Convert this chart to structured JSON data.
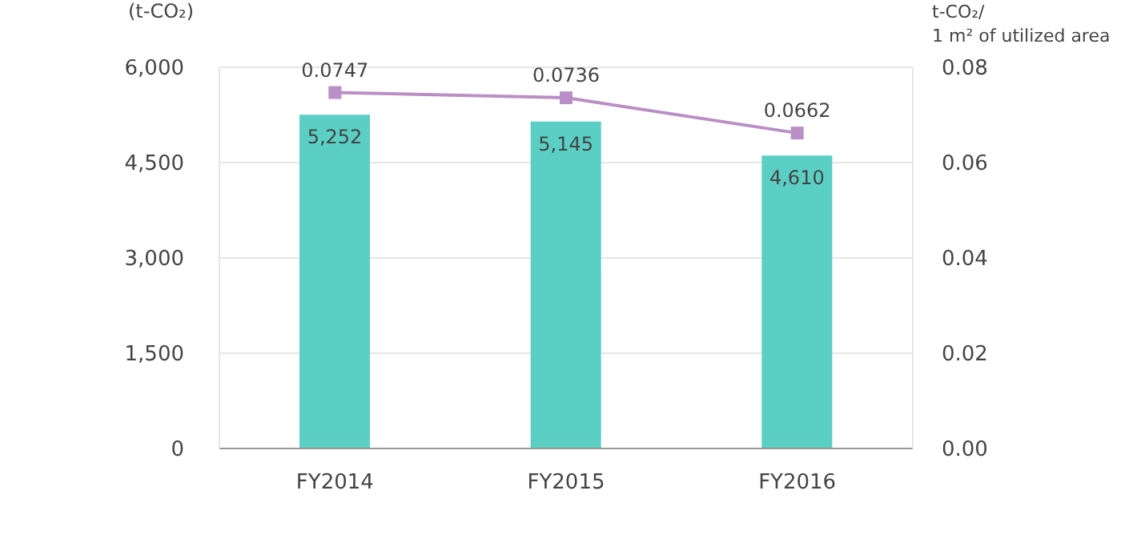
{
  "chart_data": {
    "type": "bar",
    "ylabel": "(t-CO₂)",
    "y2label": "t-CO₂/\n1 m² of utilized area",
    "categories": [
      "FY2014",
      "FY2015",
      "FY2016"
    ],
    "series": [
      {
        "color": "#5bcfc4",
        "values": [
          5252,
          5145,
          4610
        ],
        "value_labels": [
          "5,252",
          "5,145",
          "4,610"
        ]
      },
      {
        "type": "line",
        "axis": "y2",
        "color": "#b98fc6",
        "values": [
          0.0747,
          0.0736,
          0.0662
        ],
        "value_labels": [
          "0.0747",
          "0.0736",
          "0.0662"
        ],
        "marker": "square",
        "line_style": "solid"
      }
    ],
    "ylim": [
      0,
      6000
    ],
    "yticks": [
      {
        "value": 0,
        "label": "0"
      },
      {
        "value": 1500,
        "label": "1,500"
      },
      {
        "value": 3000,
        "label": "3,000"
      },
      {
        "value": 4500,
        "label": "4,500"
      },
      {
        "value": 6000,
        "label": "6,000"
      }
    ],
    "y2lim": [
      0,
      0.08
    ],
    "y2ticks": [
      {
        "value": 0,
        "label": "0.00"
      },
      {
        "value": 0.02,
        "label": "0.02"
      },
      {
        "value": 0.04,
        "label": "0.04"
      },
      {
        "value": 0.06,
        "label": "0.06"
      },
      {
        "value": 0.08,
        "label": "0.08"
      }
    ],
    "grid": "y",
    "legend": false
  }
}
